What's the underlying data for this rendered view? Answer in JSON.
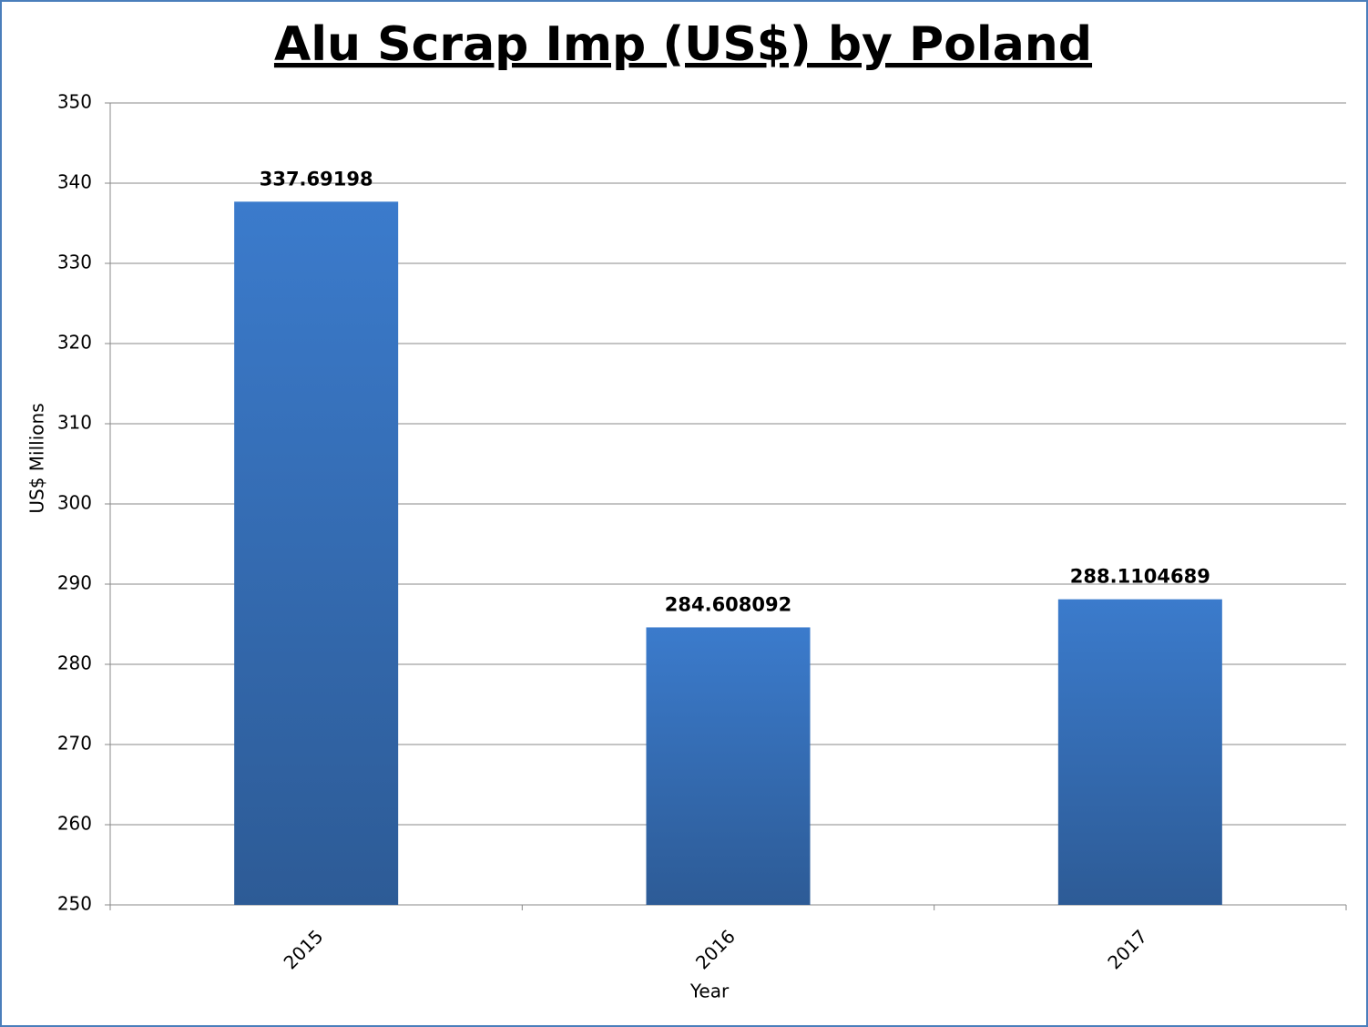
{
  "chart_data": {
    "type": "bar",
    "title": "Alu Scrap Imp (US$) by Poland",
    "x_label": "Year",
    "y_label": "US$ Millions",
    "categories": [
      "2015",
      "2016",
      "2017"
    ],
    "values": [
      337.69198,
      284.608092,
      288.1104689
    ],
    "color": "#3b7bcc",
    "ylim": [
      250,
      350
    ],
    "yticks": [
      250,
      260,
      270,
      280,
      290,
      300,
      310,
      320,
      330,
      340,
      350
    ],
    "grid": true
  }
}
